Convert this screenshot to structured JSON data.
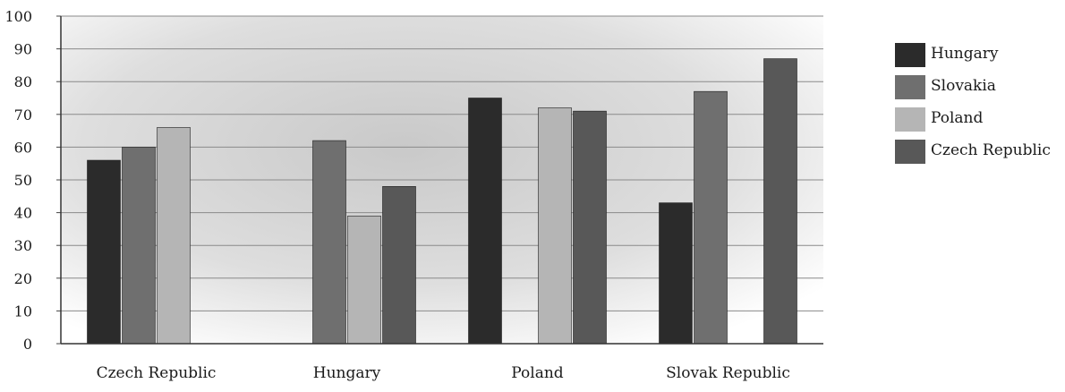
{
  "chart_data": {
    "type": "bar",
    "categories": [
      "Czech Republic",
      "Hungary",
      "Poland",
      "Slovak Republic"
    ],
    "series": [
      {
        "name": "Hungary",
        "color": "#2b2b2b",
        "values": [
          56,
          null,
          75,
          43
        ]
      },
      {
        "name": "Slovakia",
        "color": "#6f6f6f",
        "values": [
          60,
          62,
          null,
          77
        ]
      },
      {
        "name": "Poland",
        "color": "#b5b5b5",
        "values": [
          66,
          39,
          72,
          null
        ]
      },
      {
        "name": "Czech Republic",
        "color": "#585858",
        "values": [
          null,
          48,
          71,
          87
        ]
      }
    ],
    "yticks": [
      "0",
      "10",
      "20",
      "30",
      "40",
      "50",
      "60",
      "70",
      "80",
      "90",
      "100"
    ],
    "ylim": [
      0,
      100
    ],
    "grid": true,
    "legend_position": "right",
    "title": "",
    "xlabel": "",
    "ylabel": ""
  }
}
